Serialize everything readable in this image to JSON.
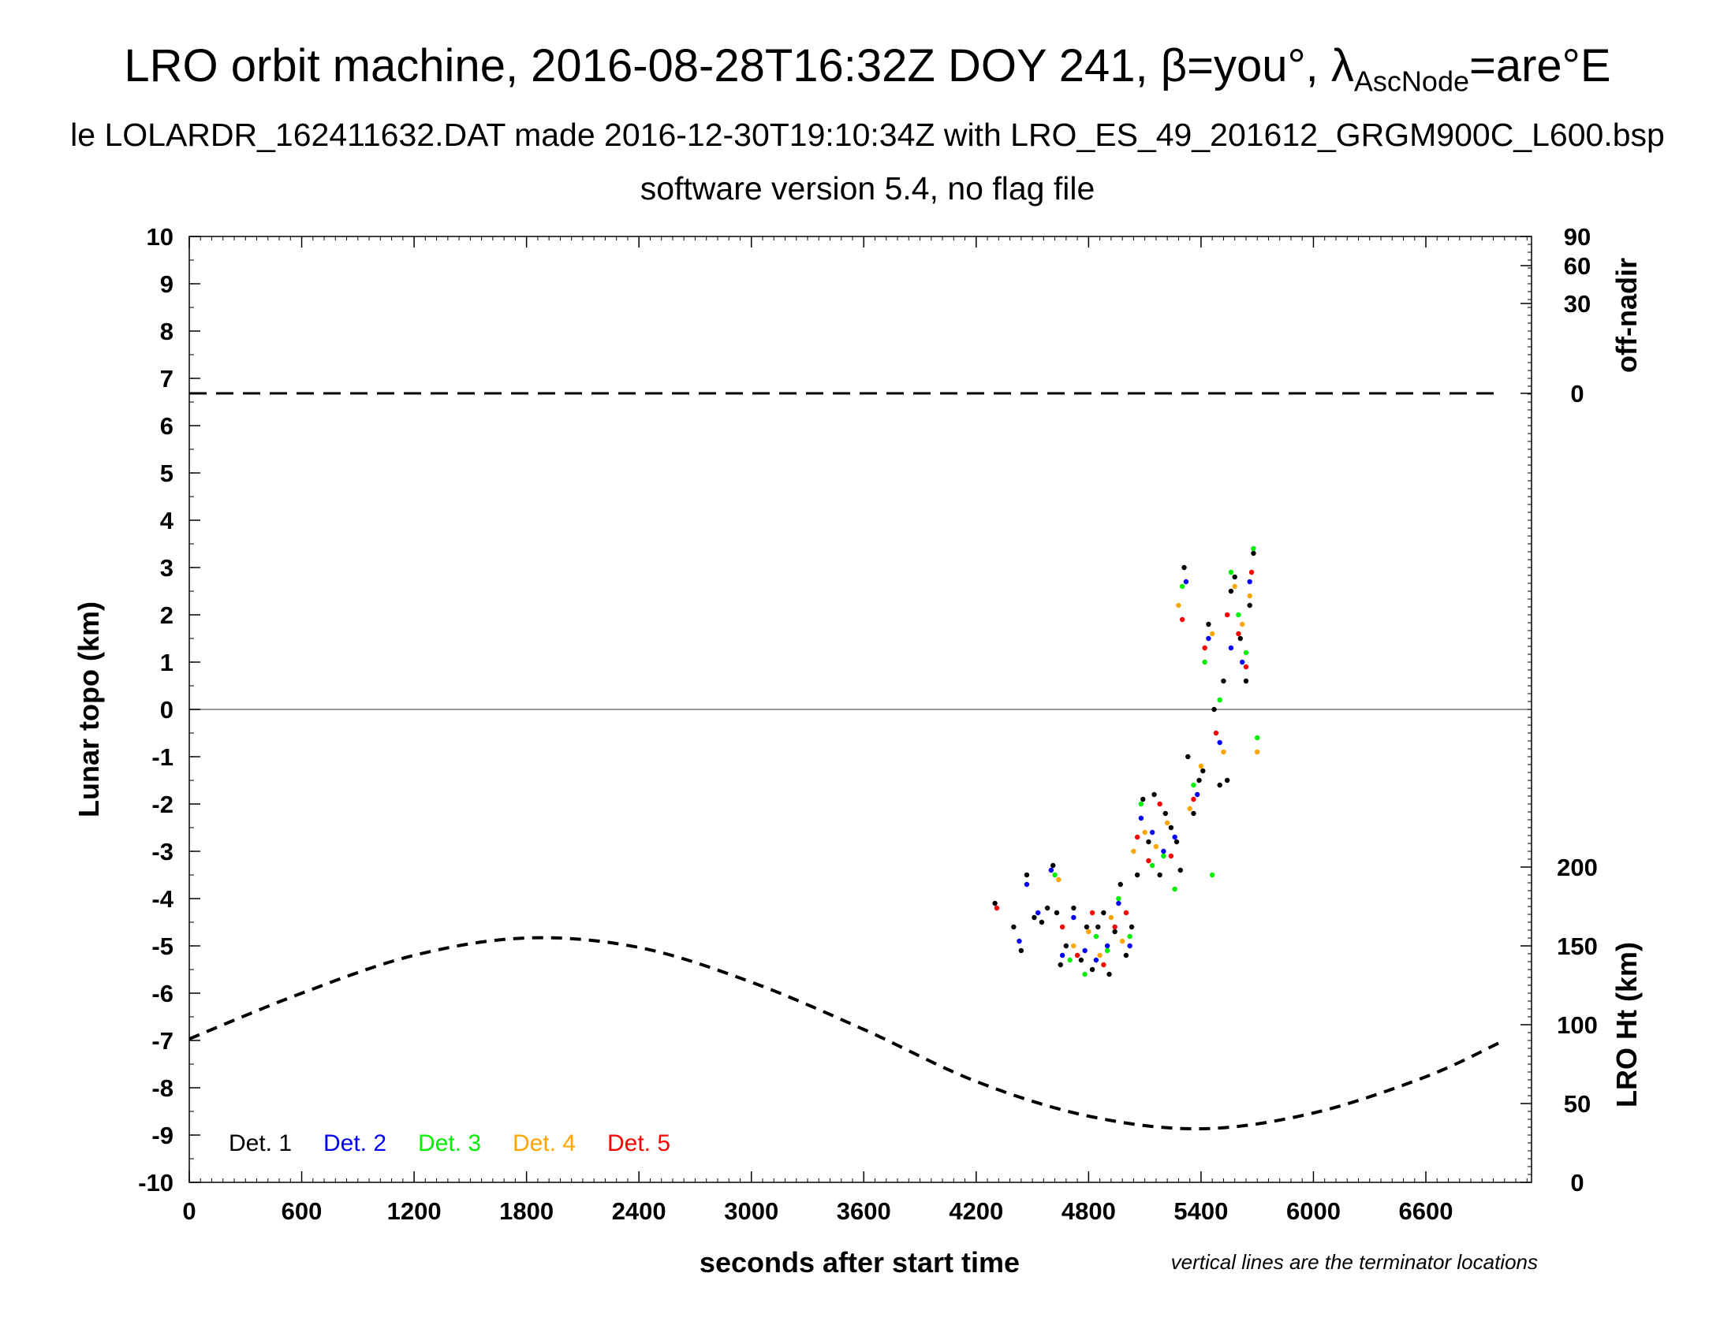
{
  "title": {
    "prefix": "LRO orbit machine, 2016-08-28T16:32Z DOY 241, β=you°, λ",
    "sub": "AscNode",
    "suffix": "=are°E"
  },
  "subtitle1": "le LOLARDR_162411632.DAT made 2016-12-30T19:10:34Z with LRO_ES_49_201612_GRGM900C_L600.bsp",
  "subtitle2": "software version 5.4, no flag file",
  "note": "vertical lines are the terminator locations",
  "colors": {
    "det1": "#000000",
    "det2": "#0000ff",
    "det3": "#00ee00",
    "det4": "#ffa500",
    "det5": "#ff0000"
  },
  "chart_data": {
    "type": "scatter",
    "xlabel": "seconds after start time",
    "ylabel": "Lunar topo (km)",
    "xlim": [
      0,
      7164
    ],
    "ylim": [
      -10,
      10
    ],
    "xticks": [
      0,
      600,
      1200,
      1800,
      2400,
      3000,
      3600,
      4200,
      4800,
      5400,
      6000,
      6600
    ],
    "yticks": [
      10,
      9,
      8,
      7,
      6,
      5,
      4,
      3,
      2,
      1,
      0,
      -1,
      -2,
      -3,
      -4,
      -5,
      -6,
      -7,
      -8,
      -9,
      -10
    ],
    "right_axis_top": {
      "label": "off-nadir",
      "ticks": [
        90,
        60,
        30,
        0
      ],
      "series": {
        "name": "off-nadir",
        "x": [
          0,
          7000
        ],
        "y": [
          0,
          0
        ]
      }
    },
    "right_axis_bottom": {
      "label": "LRO Ht (km)",
      "ylim": [
        0,
        300
      ],
      "ticks": [
        200,
        150,
        100,
        50,
        0
      ],
      "series": {
        "name": "LRO Ht (km)",
        "x": [
          0,
          600,
          1200,
          1800,
          2400,
          3000,
          3600,
          4200,
          4800,
          5400,
          6000,
          6600,
          7000
        ],
        "y": [
          91,
          120,
          144,
          155,
          149,
          127,
          97,
          64,
          42,
          34,
          44,
          67,
          89
        ]
      }
    },
    "legend": [
      "Det. 1",
      "Det. 2",
      "Det. 3",
      "Det. 4",
      "Det. 5"
    ],
    "legend_position": "bottom-left",
    "series": [
      {
        "name": "Det. 1",
        "x": [
          4300,
          4400,
          4440,
          4470,
          4510,
          4550,
          4580,
          4610,
          4630,
          4650,
          4680,
          4720,
          4760,
          4790,
          4820,
          4850,
          4880,
          4910,
          4940,
          4970,
          5000,
          5030,
          5060,
          5090,
          5120,
          5150,
          5180,
          5210,
          5240,
          5270,
          5290,
          5310,
          5330,
          5360,
          5390,
          5410,
          5440,
          5470,
          5500,
          5520,
          5540,
          5560,
          5580,
          5610,
          5640,
          5660,
          5680
        ],
        "y": [
          -4.1,
          -4.6,
          -5.1,
          -3.5,
          -4.4,
          -4.5,
          -4.2,
          -3.3,
          -4.3,
          -5.4,
          -5.0,
          -4.2,
          -5.3,
          -4.6,
          -5.5,
          -4.6,
          -4.3,
          -5.6,
          -4.7,
          -3.7,
          -5.2,
          -4.6,
          -3.5,
          -1.9,
          -2.8,
          -1.8,
          -3.5,
          -2.2,
          -2.5,
          -2.8,
          -3.4,
          3.0,
          -1.0,
          -2.2,
          -1.5,
          -1.3,
          1.8,
          0.0,
          -1.6,
          0.6,
          -1.5,
          2.5,
          2.8,
          1.5,
          0.6,
          2.2,
          3.3
        ]
      },
      {
        "name": "Det. 2",
        "x": [
          4430,
          4470,
          4530,
          4600,
          4660,
          4720,
          4780,
          4840,
          4900,
          4960,
          5020,
          5080,
          5140,
          5200,
          5260,
          5320,
          5380,
          5440,
          5500,
          5560,
          5620,
          5660
        ],
        "y": [
          -4.9,
          -3.7,
          -4.3,
          -3.4,
          -5.2,
          -4.4,
          -5.1,
          -5.3,
          -5.0,
          -4.1,
          -5.0,
          -2.3,
          -2.6,
          -3.0,
          -2.7,
          2.7,
          -1.8,
          1.5,
          -0.7,
          1.3,
          1.0,
          2.7
        ]
      },
      {
        "name": "Det. 3",
        "x": [
          4620,
          4700,
          4780,
          4840,
          4900,
          4960,
          5020,
          5080,
          5140,
          5200,
          5260,
          5300,
          5360,
          5420,
          5460,
          5500,
          5560,
          5600,
          5640,
          5680,
          5700
        ],
        "y": [
          -3.5,
          -5.3,
          -5.6,
          -4.8,
          -5.1,
          -4.0,
          -4.8,
          -2.0,
          -3.3,
          -3.1,
          -3.8,
          2.6,
          -1.6,
          1.0,
          -3.5,
          0.2,
          2.9,
          2.0,
          1.2,
          3.4,
          -0.6
        ]
      },
      {
        "name": "Det. 4",
        "x": [
          4640,
          4720,
          4800,
          4860,
          4920,
          4980,
          5040,
          5100,
          5160,
          5220,
          5280,
          5340,
          5400,
          5460,
          5520,
          5580,
          5620,
          5660,
          5700
        ],
        "y": [
          -3.6,
          -5.0,
          -4.7,
          -5.2,
          -4.4,
          -4.9,
          -3.0,
          -2.6,
          -2.9,
          -2.4,
          2.2,
          -2.1,
          -1.2,
          1.6,
          -0.9,
          2.6,
          1.8,
          2.4,
          -0.9
        ]
      },
      {
        "name": "Det. 5",
        "x": [
          4310,
          4660,
          4740,
          4820,
          4880,
          4940,
          5000,
          5060,
          5120,
          5180,
          5240,
          5300,
          5360,
          5420,
          5480,
          5540,
          5600,
          5640,
          5670
        ],
        "y": [
          -4.2,
          -4.6,
          -5.2,
          -4.3,
          -5.4,
          -4.6,
          -4.3,
          -2.7,
          -3.2,
          -2.0,
          -3.1,
          1.9,
          -1.9,
          1.3,
          -0.5,
          2.0,
          1.6,
          0.9,
          2.9
        ]
      }
    ]
  }
}
